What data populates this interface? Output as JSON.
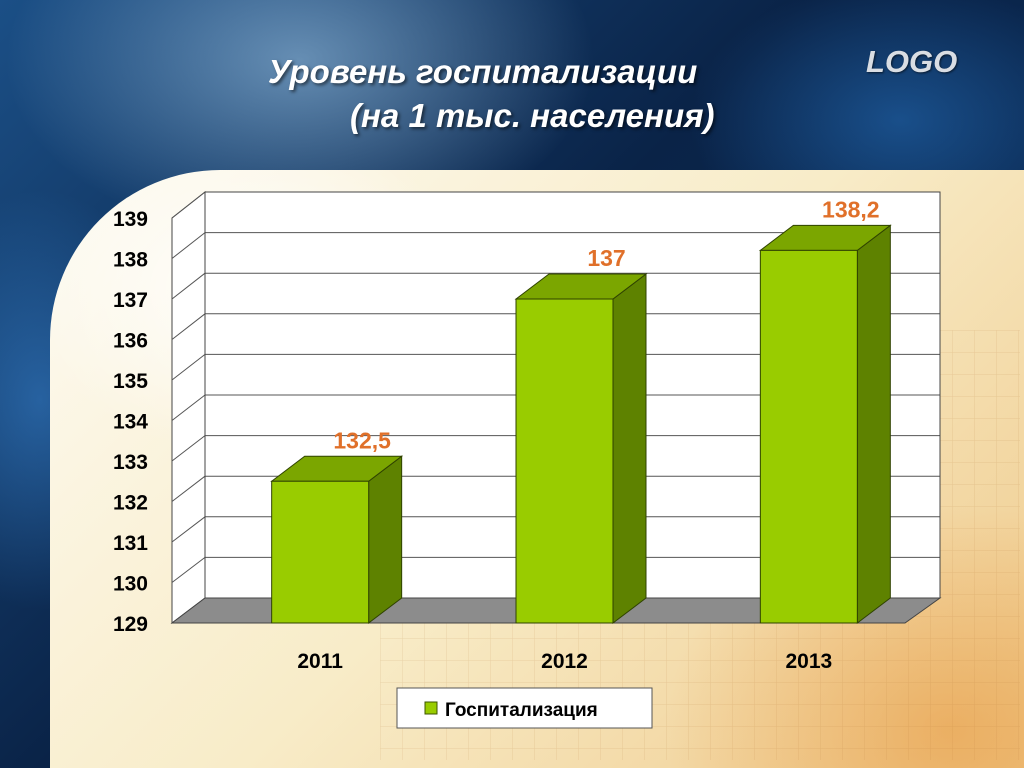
{
  "slide": {
    "title_line1": "Уровень госпитализации",
    "title_line2": "(на 1 тыс. населения)",
    "logo": "LOGO"
  },
  "colors": {
    "bar_front": "#99cc00",
    "bar_side": "#5e8200",
    "bar_top": "#7ba600",
    "data_label": "#e0702a",
    "floor": "#8c8c8c"
  },
  "chart_data": {
    "type": "bar",
    "categories": [
      "2011",
      "2012",
      "2013"
    ],
    "series": [
      {
        "name": "Госпитализация",
        "values": [
          132.5,
          137,
          138.2
        ],
        "labels": [
          "132,5",
          "137",
          "138,2"
        ]
      }
    ],
    "ylim": [
      129,
      139
    ],
    "yticks": [
      129,
      130,
      131,
      132,
      133,
      134,
      135,
      136,
      137,
      138,
      139
    ],
    "grid": true,
    "legend": "bottom",
    "three_d": true
  }
}
